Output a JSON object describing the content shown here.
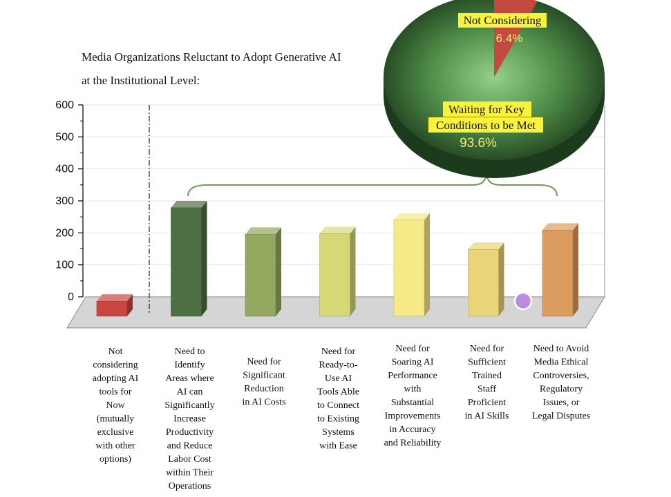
{
  "chart_data": {
    "type": "bar",
    "title_lines": [
      "Media Organizations Reluctant to Adopt Generative AI",
      "at the Institutional Level:"
    ],
    "ylim": [
      0,
      600
    ],
    "yticks": [
      0,
      100,
      200,
      300,
      400,
      500,
      600
    ],
    "categories": [
      [
        "Not",
        "considering",
        "adopting AI",
        "tools for",
        "Now",
        "(mutually",
        "exclusive",
        "with other",
        "options)"
      ],
      [
        "Need to",
        "Identify",
        "Areas where",
        "AI can",
        "Significantly",
        "Increase",
        "Productivity",
        "and Reduce",
        "Labor Cost",
        "within Their",
        "Operations"
      ],
      [
        "Need for",
        "Significant",
        "Reduction",
        "in AI Costs"
      ],
      [
        "Need for",
        "Ready-to-",
        "Use AI",
        "Tools Able",
        "to Connect",
        "to Existing",
        "Systems",
        "with Ease"
      ],
      [
        "Need for",
        "Soaring AI",
        "Performance",
        "with",
        "Substantial",
        "Improvements",
        "in Accuracy",
        "and Reliability"
      ],
      [
        "Need for",
        "Sufficient",
        "Trained",
        "Staff",
        "Proficient",
        "in AI Skills"
      ],
      [
        "Need to Avoid",
        "Media Ethical",
        "Controversies,",
        "Regulatory",
        "Issues, or",
        "Legal Disputes"
      ]
    ],
    "values": [
      21,
      313,
      230,
      232,
      275,
      183,
      243
    ],
    "bar_colors": [
      "#c8463f",
      "#4e6e44",
      "#94a860",
      "#d6d878",
      "#f5ea86",
      "#ead478",
      "#dc9c5e"
    ],
    "pie": {
      "slices": [
        {
          "label": "Not Considering",
          "value": 6.4,
          "value_label": "6.4%",
          "color": "#c44a3f"
        },
        {
          "label_lines": [
            "Waiting for Key",
            "Conditions to be Met"
          ],
          "value": 93.6,
          "value_label": "93.6%",
          "color": "#4f8a47"
        }
      ]
    }
  }
}
